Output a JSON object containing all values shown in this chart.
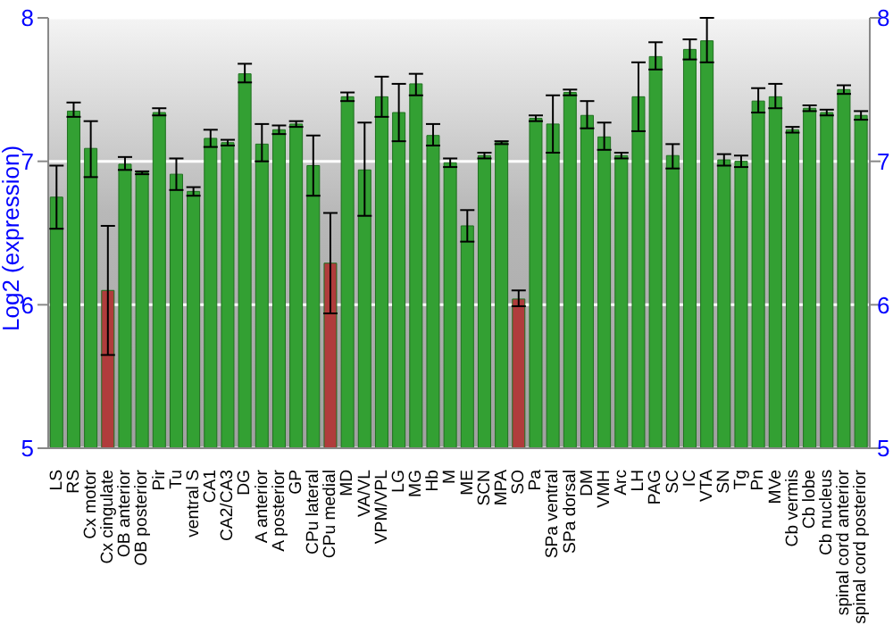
{
  "chart_data": {
    "type": "bar",
    "ylabel": "Log2 (expression)",
    "categories": [
      "LS",
      "RS",
      "Cx motor",
      "Cx cingulate",
      "OB anterior",
      "OB posterior",
      "Pir",
      "Tu",
      "ventral S",
      "CA1",
      "CA2/CA3",
      "DG",
      "A anterior",
      "A posterior",
      "GP",
      "CPu lateral",
      "CPu medial",
      "MD",
      "VA/VL",
      "VPM/VPL",
      "LG",
      "MG",
      "Hb",
      "M",
      "ME",
      "SCN",
      "MPA",
      "SO",
      "Pa",
      "SPa ventral",
      "SPa dorsal",
      "DM",
      "VMH",
      "Arc",
      "LH",
      "PAG",
      "SC",
      "IC",
      "VTA",
      "SN",
      "Tg",
      "Pn",
      "MVe",
      "Cb vermis",
      "Cb lobe",
      "Cb nucleus",
      "spinal cord anterior",
      "spinal cord posterior"
    ],
    "values": [
      6.75,
      7.35,
      7.09,
      6.1,
      6.98,
      6.92,
      7.34,
      6.91,
      6.79,
      7.16,
      7.13,
      7.61,
      7.12,
      7.22,
      7.26,
      6.97,
      6.29,
      7.45,
      6.94,
      7.45,
      7.34,
      7.54,
      7.18,
      6.99,
      6.55,
      7.04,
      7.13,
      6.04,
      7.3,
      7.26,
      7.48,
      7.32,
      7.17,
      7.04,
      7.45,
      7.73,
      7.04,
      7.78,
      7.84,
      7.01,
      7.0,
      7.42,
      7.45,
      7.22,
      7.37,
      7.34,
      7.5,
      7.32
    ],
    "errors": [
      [
        6.53,
        6.97
      ],
      [
        7.31,
        7.41
      ],
      [
        6.89,
        7.28
      ],
      [
        5.65,
        6.55
      ],
      [
        6.94,
        7.03
      ],
      [
        6.91,
        6.93
      ],
      [
        7.32,
        7.37
      ],
      [
        6.8,
        7.02
      ],
      [
        6.76,
        6.82
      ],
      [
        7.1,
        7.22
      ],
      [
        7.11,
        7.15
      ],
      [
        7.55,
        7.68
      ],
      [
        7.0,
        7.26
      ],
      [
        7.19,
        7.25
      ],
      [
        7.24,
        7.28
      ],
      [
        6.76,
        7.18
      ],
      [
        5.94,
        6.64
      ],
      [
        7.42,
        7.48
      ],
      [
        6.62,
        7.27
      ],
      [
        7.31,
        7.59
      ],
      [
        7.14,
        7.54
      ],
      [
        7.46,
        7.61
      ],
      [
        7.11,
        7.26
      ],
      [
        6.96,
        7.02
      ],
      [
        6.44,
        6.66
      ],
      [
        7.02,
        7.06
      ],
      [
        7.12,
        7.14
      ],
      [
        5.99,
        6.1
      ],
      [
        7.28,
        7.32
      ],
      [
        7.06,
        7.46
      ],
      [
        7.46,
        7.5
      ],
      [
        7.23,
        7.42
      ],
      [
        7.08,
        7.27
      ],
      [
        7.02,
        7.06
      ],
      [
        7.21,
        7.69
      ],
      [
        7.64,
        7.83
      ],
      [
        6.95,
        7.12
      ],
      [
        7.71,
        7.85
      ],
      [
        7.69,
        8.0
      ],
      [
        6.97,
        7.05
      ],
      [
        6.96,
        7.04
      ],
      [
        7.34,
        7.51
      ],
      [
        7.37,
        7.54
      ],
      [
        7.2,
        7.24
      ],
      [
        7.35,
        7.39
      ],
      [
        7.32,
        7.36
      ],
      [
        7.47,
        7.53
      ],
      [
        7.29,
        7.35
      ]
    ],
    "colors": [
      "#33a033",
      "#33a033",
      "#33a033",
      "#b03c3c",
      "#33a033",
      "#33a033",
      "#33a033",
      "#33a033",
      "#33a033",
      "#33a033",
      "#33a033",
      "#33a033",
      "#33a033",
      "#33a033",
      "#33a033",
      "#33a033",
      "#b03c3c",
      "#33a033",
      "#33a033",
      "#33a033",
      "#33a033",
      "#33a033",
      "#33a033",
      "#33a033",
      "#33a033",
      "#33a033",
      "#33a033",
      "#b03c3c",
      "#33a033",
      "#33a033",
      "#33a033",
      "#33a033",
      "#33a033",
      "#33a033",
      "#33a033",
      "#33a033",
      "#33a033",
      "#33a033",
      "#33a033",
      "#33a033",
      "#33a033",
      "#33a033",
      "#33a033",
      "#33a033",
      "#33a033",
      "#33a033",
      "#33a033",
      "#33a033"
    ],
    "ylim": [
      5,
      8
    ],
    "yticks": [
      5,
      6,
      7,
      8
    ],
    "y2lim": [
      5,
      8
    ],
    "y2ticks": [
      5,
      6,
      7,
      8
    ],
    "grid": "y"
  }
}
